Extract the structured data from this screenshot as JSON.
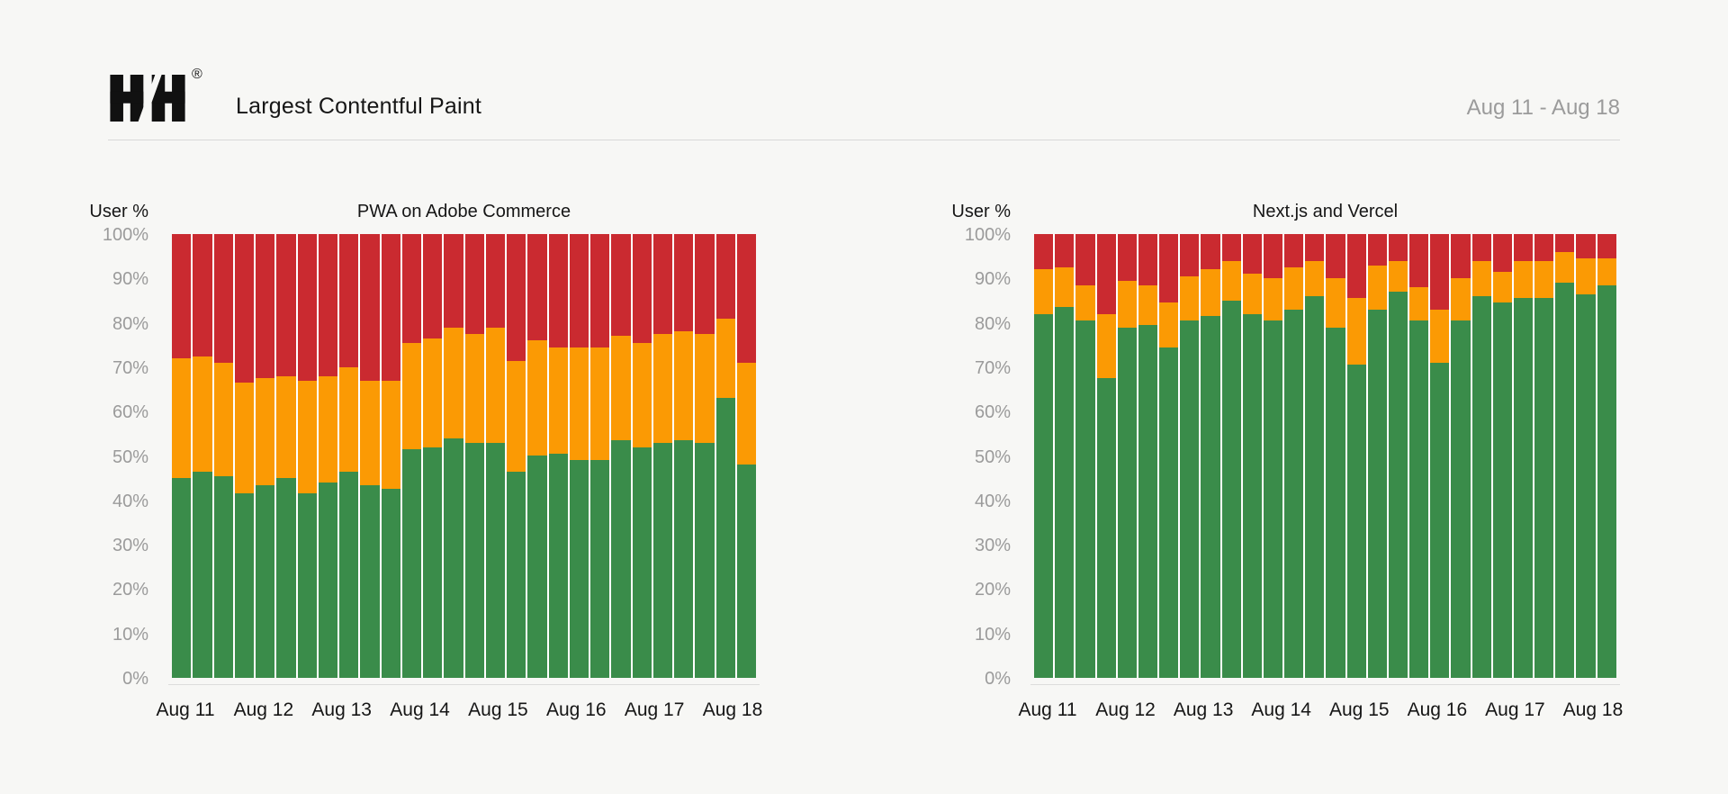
{
  "header": {
    "logo": "HH",
    "registered_mark": "®",
    "title": "Largest Contentful Paint",
    "date_range": "Aug 11 - Aug 18"
  },
  "colors": {
    "background": "#F7F7F5",
    "green": "#3A8C4A",
    "orange": "#FB9A04",
    "red": "#CA2A30",
    "axis_text_gray": "#9B9B9B",
    "text_black": "#161616",
    "divider": "#D8D8D8",
    "bar_gap_white": "#FFFFFF"
  },
  "chart_data": [
    {
      "type": "bar",
      "stacked": true,
      "title": "PWA on Adobe Commerce",
      "ylabel": "User %",
      "ylim": [
        0,
        100
      ],
      "grid": false,
      "legend_position": "none",
      "y_tick_labels": [
        "0%",
        "10%",
        "20%",
        "30%",
        "40%",
        "50%",
        "60%",
        "70%",
        "80%",
        "90%",
        "100%"
      ],
      "x_tick_labels": [
        "Aug 11",
        "Aug 12",
        "Aug 13",
        "Aug 14",
        "Aug 15",
        "Aug 16",
        "Aug 17",
        "Aug 18"
      ],
      "bars_per_x_label": 4,
      "series": [
        {
          "name": "green",
          "color": "#3A8C4A",
          "values": [
            45,
            46.5,
            45.5,
            41.5,
            43.5,
            45,
            41.5,
            44,
            46.5,
            43.5,
            42.5,
            51.5,
            52,
            54,
            53,
            53,
            46.5,
            50,
            50.5,
            49,
            49,
            53.5,
            52,
            53,
            53.5,
            53,
            63,
            48
          ]
        },
        {
          "name": "orange",
          "color": "#FB9A04",
          "values": [
            27,
            26,
            25.5,
            25,
            24,
            23,
            25.5,
            24,
            23.5,
            23.5,
            24.5,
            24,
            24.5,
            25,
            24.5,
            26,
            25,
            26,
            24,
            25.5,
            25.5,
            23.5,
            23.5,
            24.5,
            24.5,
            24.5,
            18,
            23
          ]
        },
        {
          "name": "red",
          "color": "#CA2A30",
          "values": [
            28,
            27.5,
            29,
            33.5,
            32.5,
            32,
            33,
            32,
            30,
            33,
            33,
            24.5,
            23.5,
            21,
            22.5,
            21,
            28.5,
            24,
            25.5,
            25.5,
            25.5,
            23,
            24.5,
            22.5,
            22,
            22.5,
            19,
            29
          ]
        }
      ]
    },
    {
      "type": "bar",
      "stacked": true,
      "title": "Next.js and Vercel",
      "ylabel": "User %",
      "ylim": [
        0,
        100
      ],
      "grid": false,
      "legend_position": "none",
      "y_tick_labels": [
        "0%",
        "10%",
        "20%",
        "30%",
        "40%",
        "50%",
        "60%",
        "70%",
        "80%",
        "90%",
        "100%"
      ],
      "x_tick_labels": [
        "Aug 11",
        "Aug 12",
        "Aug 13",
        "Aug 14",
        "Aug 15",
        "Aug 16",
        "Aug 17",
        "Aug 18"
      ],
      "bars_per_x_label": 4,
      "series": [
        {
          "name": "green",
          "color": "#3A8C4A",
          "values": [
            82,
            83.5,
            80.5,
            67.5,
            79,
            79.5,
            74.5,
            80.5,
            81.5,
            85,
            82,
            80.5,
            83,
            86,
            79,
            70.5,
            83,
            87,
            80.5,
            71,
            80.5,
            86,
            84.5,
            85.5,
            85.5,
            89,
            86.5,
            88.5
          ]
        },
        {
          "name": "orange",
          "color": "#FB9A04",
          "values": [
            10,
            9,
            8,
            14.5,
            10.5,
            9,
            10,
            10,
            10.5,
            9,
            9,
            9.5,
            9.5,
            8,
            11,
            15,
            10,
            7,
            7.5,
            12,
            9.5,
            8,
            7,
            8.5,
            8.5,
            7,
            8,
            6
          ]
        },
        {
          "name": "red",
          "color": "#CA2A30",
          "values": [
            8,
            7.5,
            11.5,
            18,
            10.5,
            11.5,
            15.5,
            9.5,
            8,
            6,
            9,
            10,
            7.5,
            6,
            10,
            14.5,
            7,
            6,
            12,
            17,
            10,
            6,
            8.5,
            6,
            6,
            4,
            5.5,
            5.5
          ]
        }
      ]
    }
  ]
}
